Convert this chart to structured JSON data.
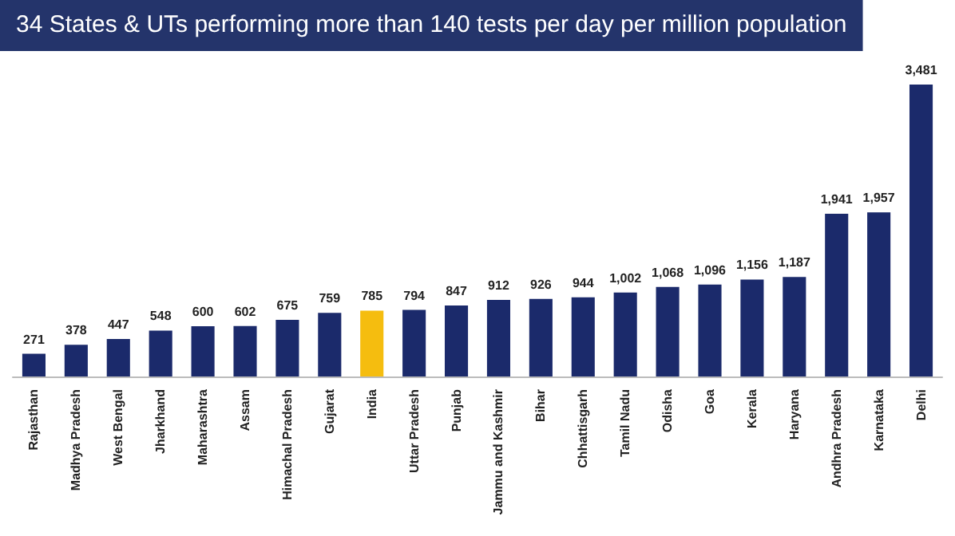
{
  "chart_data": {
    "type": "bar",
    "title": "34 States & UTs performing more than 140 tests per day per million population",
    "categories": [
      "Rajasthan",
      "Madhya Pradesh",
      "West Bengal",
      "Jharkhand",
      "Maharashtra",
      "Assam",
      "Himachal Pradesh",
      "Gujarat",
      "India",
      "Uttar Pradesh",
      "Punjab",
      "Jammu and Kashmir",
      "Bihar",
      "Chhattisgarh",
      "Tamil Nadu",
      "Odisha",
      "Goa",
      "Kerala",
      "Haryana",
      "Andhra Pradesh",
      "Karnataka",
      "Delhi"
    ],
    "values": [
      271,
      378,
      447,
      548,
      600,
      602,
      675,
      759,
      785,
      794,
      847,
      912,
      926,
      944,
      1002,
      1068,
      1096,
      1156,
      1187,
      1941,
      1957,
      3481
    ],
    "value_labels": [
      "271",
      "378",
      "447",
      "548",
      "600",
      "602",
      "675",
      "759",
      "785",
      "794",
      "847",
      "912",
      "926",
      "944",
      "1,002",
      "1,068",
      "1,096",
      "1,156",
      "1,187",
      "1,941",
      "1,957",
      "3,481"
    ],
    "colors": [
      "#1b2a6b",
      "#1b2a6b",
      "#1b2a6b",
      "#1b2a6b",
      "#1b2a6b",
      "#1b2a6b",
      "#1b2a6b",
      "#1b2a6b",
      "#f5bd0f",
      "#1b2a6b",
      "#1b2a6b",
      "#1b2a6b",
      "#1b2a6b",
      "#1b2a6b",
      "#1b2a6b",
      "#1b2a6b",
      "#1b2a6b",
      "#1b2a6b",
      "#1b2a6b",
      "#1b2a6b",
      "#1b2a6b",
      "#1b2a6b"
    ],
    "grid": false
  }
}
